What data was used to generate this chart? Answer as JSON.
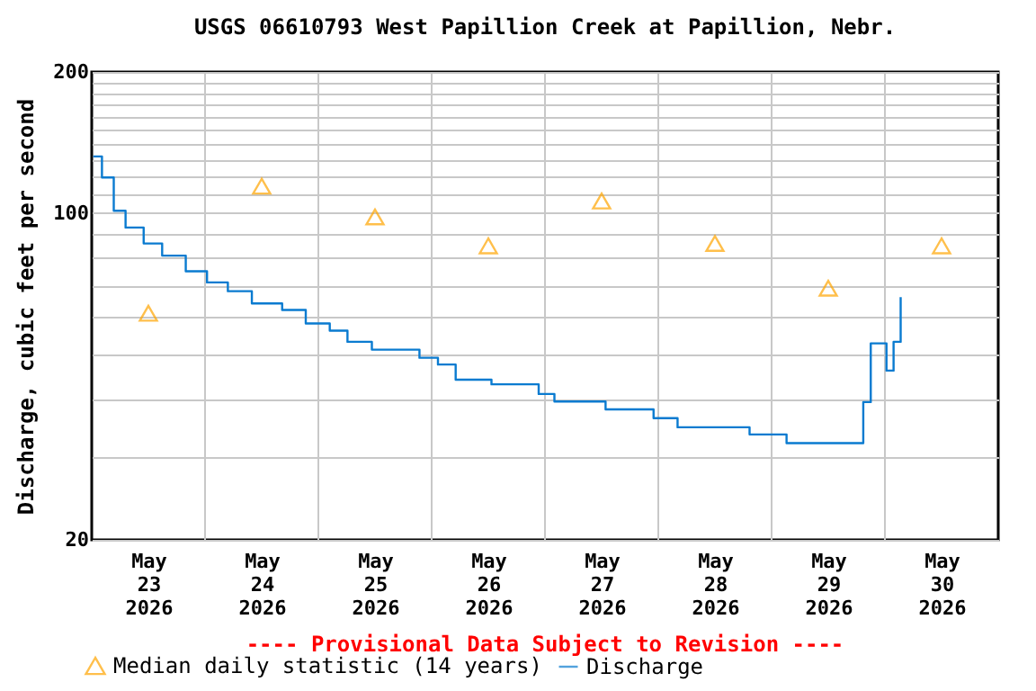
{
  "chart_data": {
    "type": "step",
    "title": "USGS 06610793 West Papillion Creek at Papillion, Nebr.",
    "ylabel": "Discharge, cubic feet per second",
    "annotations": [
      "---- Provisional Data Subject to Revision ----"
    ],
    "log": "y",
    "grid": true,
    "legend": "bottom left",
    "xlim": [
      "2026-05-23T00:00",
      "2026-05-31T00:00"
    ],
    "xticks": [
      {
        "value": "2026-05-23T12:00",
        "label": "May\n23\n2026"
      },
      {
        "value": "2026-05-24T12:00",
        "label": "May\n24\n2026"
      },
      {
        "value": "2026-05-25T12:00",
        "label": "May\n25\n2026"
      },
      {
        "value": "2026-05-26T12:00",
        "label": "May\n26\n2026"
      },
      {
        "value": "2026-05-27T12:00",
        "label": "May\n27\n2026"
      },
      {
        "value": "2026-05-28T12:00",
        "label": "May\n28\n2026"
      },
      {
        "value": "2026-05-29T12:00",
        "label": "May\n29\n2026"
      },
      {
        "value": "2026-05-30T12:00",
        "label": "May\n30\n2026"
      },
      {
        "value": "2026-05-24T00:00",
        "label": null
      },
      {
        "value": "2026-05-25T00:00",
        "label": null
      },
      {
        "value": "2026-05-26T00:00",
        "label": null
      },
      {
        "value": "2026-05-27T00:00",
        "label": null
      },
      {
        "value": "2026-05-28T00:00",
        "label": null
      },
      {
        "value": "2026-05-29T00:00",
        "label": null
      },
      {
        "value": "2026-05-30T00:00",
        "label": null
      }
    ],
    "ylim": [
      20,
      200
    ],
    "yticks": [
      20,
      {
        "value": 30,
        "label": null
      },
      {
        "value": 40,
        "label": null
      },
      {
        "value": 50,
        "label": null
      },
      {
        "value": 60,
        "label": null
      },
      {
        "value": 70,
        "label": null
      },
      {
        "value": 80,
        "label": null
      },
      {
        "value": 90,
        "label": null
      },
      100,
      {
        "value": 110,
        "label": null
      },
      {
        "value": 120,
        "label": null
      },
      {
        "value": 130,
        "label": null
      },
      {
        "value": 140,
        "label": null
      },
      {
        "value": 150,
        "label": null
      },
      {
        "value": 160,
        "label": null
      },
      {
        "value": 170,
        "label": null
      },
      {
        "value": 180,
        "label": null
      },
      {
        "value": 190,
        "label": null
      },
      200
    ],
    "series": [
      {
        "name": "Median daily statistic (14 years)",
        "type": "scatter",
        "marker": "triangle",
        "color": "#ffa500",
        "x": [
          "2026-05-23T12:00",
          "2026-05-24T12:00",
          "2026-05-25T12:00",
          "2026-05-26T12:00",
          "2026-05-27T12:00",
          "2026-05-28T12:00",
          "2026-05-29T12:00",
          "2026-05-30T12:00"
        ],
        "values": [
          61,
          114,
          98,
          85,
          106,
          86,
          69,
          85
        ]
      },
      {
        "name": "Discharge",
        "marker": "none",
        "color": "#0a7bd0",
        "x": [
          "2026-05-23T00:20",
          "2026-05-23T02:10",
          "2026-05-23T04:40",
          "2026-05-23T07:10",
          "2026-05-23T11:00",
          "2026-05-23T14:55",
          "2026-05-23T19:55",
          "2026-05-24T00:25",
          "2026-05-24T04:50",
          "2026-05-24T09:55",
          "2026-05-24T16:20",
          "2026-05-24T21:20",
          "2026-05-25T02:25",
          "2026-05-25T06:10",
          "2026-05-25T11:20",
          "2026-05-25T21:25",
          "2026-05-26T01:20",
          "2026-05-26T05:05",
          "2026-05-26T12:40",
          "2026-05-26T22:00",
          "2026-05-26T22:40",
          "2026-05-27T02:00",
          "2026-05-27T12:50",
          "2026-05-27T23:00",
          "2026-05-28T04:05",
          "2026-05-28T19:20",
          "2026-05-29T03:10",
          "2026-05-29T18:10",
          "2026-05-29T19:25",
          "2026-05-29T21:00",
          "2026-05-29T22:10",
          "2026-05-30T00:20",
          "2026-05-30T01:50",
          "2026-05-30T03:20"
        ],
        "values": [
          132,
          119,
          101,
          93,
          86,
          81,
          75,
          71,
          68,
          64,
          62,
          58,
          56,
          53,
          51,
          49,
          47.4,
          44,
          43,
          43,
          41,
          39.5,
          38,
          36.4,
          34.8,
          33.6,
          32.2,
          32.2,
          39.4,
          52.6,
          52.6,
          46,
          53,
          66
        ]
      }
    ]
  }
}
